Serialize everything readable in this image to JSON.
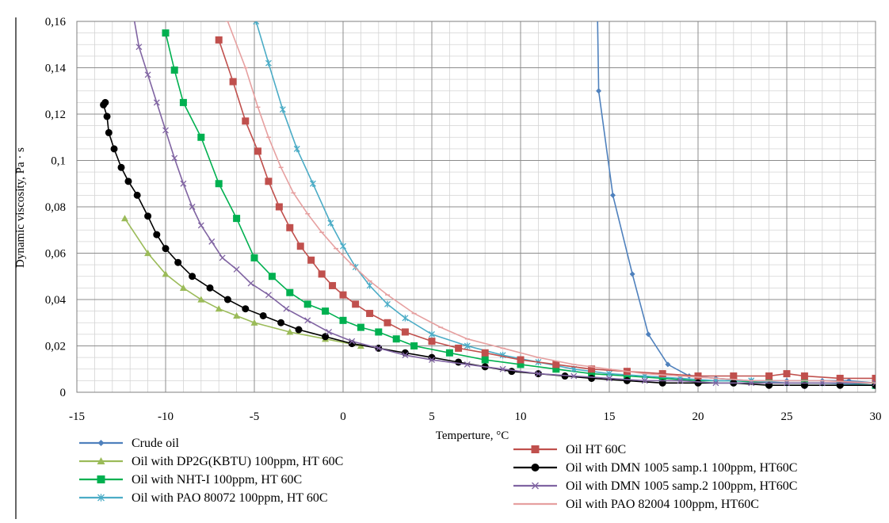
{
  "chart_data": {
    "type": "line",
    "title": "",
    "xlabel": "Temperture, °C",
    "ylabel": "Dynamic viscosity, Pa · s",
    "xlim": [
      -15,
      30
    ],
    "ylim": [
      0,
      0.16
    ],
    "xticks": [
      -15,
      -10,
      -5,
      0,
      5,
      10,
      15,
      20,
      25,
      30
    ],
    "xtick_labels": [
      "-15",
      "-10",
      "-5",
      "0",
      "5",
      "10",
      "15",
      "20",
      "25",
      "30"
    ],
    "yticks": [
      0,
      0.02,
      0.04,
      0.06,
      0.08,
      0.1,
      0.12,
      0.14,
      0.16
    ],
    "ytick_labels": [
      "0",
      "0,02",
      "0,04",
      "0,06",
      "0,08",
      "0,1",
      "0,12",
      "0,14",
      "0,16"
    ],
    "grid": true,
    "legend_position": "bottom",
    "series": [
      {
        "name": "Crude oil",
        "color": "#4f81bd",
        "marker": "diamond",
        "points": [
          [
            14.3,
            0.18
          ],
          [
            14.4,
            0.13
          ],
          [
            15.2,
            0.085
          ],
          [
            16.3,
            0.051
          ],
          [
            17.2,
            0.025
          ],
          [
            18.3,
            0.012
          ],
          [
            19.5,
            0.007
          ],
          [
            21,
            0.006
          ],
          [
            23,
            0.005
          ],
          [
            25,
            0.005
          ],
          [
            27,
            0.005
          ],
          [
            28.5,
            0.005
          ],
          [
            30,
            0.004
          ]
        ]
      },
      {
        "name": "Oil with DP2G(KBTU) 100ppm, HT 60C",
        "color": "#9bbb59",
        "marker": "triangle",
        "points": [
          [
            -12.3,
            0.075
          ],
          [
            -11,
            0.06
          ],
          [
            -10,
            0.051
          ],
          [
            -9,
            0.045
          ],
          [
            -8,
            0.04
          ],
          [
            -7,
            0.036
          ],
          [
            -6,
            0.033
          ],
          [
            -5,
            0.03
          ],
          [
            -3,
            0.026
          ],
          [
            -1,
            0.023
          ],
          [
            1,
            0.02
          ]
        ]
      },
      {
        "name": "Oil with NHT-I 100ppm, HT 60C",
        "color": "#00b050",
        "marker": "square",
        "points": [
          [
            -10,
            0.155
          ],
          [
            -9.5,
            0.139
          ],
          [
            -9,
            0.125
          ],
          [
            -8,
            0.11
          ],
          [
            -7,
            0.09
          ],
          [
            -6,
            0.075
          ],
          [
            -5,
            0.058
          ],
          [
            -4,
            0.05
          ],
          [
            -3,
            0.043
          ],
          [
            -2,
            0.038
          ],
          [
            -1,
            0.035
          ],
          [
            0,
            0.031
          ],
          [
            1,
            0.028
          ],
          [
            2,
            0.026
          ],
          [
            3,
            0.023
          ],
          [
            4,
            0.02
          ],
          [
            6,
            0.017
          ],
          [
            8,
            0.014
          ],
          [
            10,
            0.012
          ],
          [
            12,
            0.01
          ],
          [
            14,
            0.008
          ],
          [
            16,
            0.007
          ],
          [
            18,
            0.006
          ],
          [
            20,
            0.005
          ],
          [
            22,
            0.005
          ],
          [
            24,
            0.004
          ],
          [
            26,
            0.004
          ],
          [
            28,
            0.004
          ],
          [
            30,
            0.003
          ]
        ]
      },
      {
        "name": "Oil with PAO 80072 100ppm, HT 60C",
        "color": "#4bacc6",
        "marker": "star",
        "points": [
          [
            -4.9,
            0.16
          ],
          [
            -4.2,
            0.142
          ],
          [
            -3.4,
            0.122
          ],
          [
            -2.6,
            0.105
          ],
          [
            -1.7,
            0.09
          ],
          [
            -0.7,
            0.073
          ],
          [
            0,
            0.063
          ],
          [
            0.7,
            0.054
          ],
          [
            1.5,
            0.046
          ],
          [
            2.5,
            0.038
          ],
          [
            3.5,
            0.032
          ],
          [
            5,
            0.025
          ],
          [
            7,
            0.02
          ],
          [
            9,
            0.016
          ],
          [
            11,
            0.013
          ],
          [
            13,
            0.01
          ],
          [
            15,
            0.008
          ],
          [
            17,
            0.007
          ],
          [
            19,
            0.006
          ],
          [
            21,
            0.005
          ],
          [
            23,
            0.005
          ],
          [
            25,
            0.004
          ],
          [
            27,
            0.004
          ],
          [
            30,
            0.003
          ]
        ]
      },
      {
        "name": "Oil HT 60C",
        "color": "#c0504d",
        "marker": "square",
        "points": [
          [
            -7,
            0.152
          ],
          [
            -6.2,
            0.134
          ],
          [
            -5.5,
            0.117
          ],
          [
            -4.8,
            0.104
          ],
          [
            -4.2,
            0.091
          ],
          [
            -3.6,
            0.08
          ],
          [
            -3,
            0.071
          ],
          [
            -2.4,
            0.063
          ],
          [
            -1.8,
            0.057
          ],
          [
            -1.2,
            0.051
          ],
          [
            -0.6,
            0.046
          ],
          [
            0,
            0.042
          ],
          [
            0.7,
            0.038
          ],
          [
            1.5,
            0.034
          ],
          [
            2.5,
            0.03
          ],
          [
            3.5,
            0.026
          ],
          [
            5,
            0.022
          ],
          [
            6.5,
            0.019
          ],
          [
            8,
            0.017
          ],
          [
            10,
            0.014
          ],
          [
            12,
            0.012
          ],
          [
            14,
            0.01
          ],
          [
            16,
            0.009
          ],
          [
            18,
            0.008
          ],
          [
            20,
            0.007
          ],
          [
            22,
            0.007
          ],
          [
            24,
            0.007
          ],
          [
            25,
            0.008
          ],
          [
            26,
            0.007
          ],
          [
            28,
            0.006
          ],
          [
            30,
            0.006
          ]
        ]
      },
      {
        "name": "Oil with DMN 1005 samp.1 100ppm, HT60C",
        "color": "#000000",
        "marker": "circle",
        "points": [
          [
            -13.4,
            0.125
          ],
          [
            -13.5,
            0.124
          ],
          [
            -13.3,
            0.119
          ],
          [
            -13.2,
            0.112
          ],
          [
            -12.9,
            0.105
          ],
          [
            -12.5,
            0.097
          ],
          [
            -12.1,
            0.091
          ],
          [
            -11.6,
            0.085
          ],
          [
            -11,
            0.076
          ],
          [
            -10.5,
            0.068
          ],
          [
            -10,
            0.062
          ],
          [
            -9.3,
            0.056
          ],
          [
            -8.5,
            0.05
          ],
          [
            -7.5,
            0.045
          ],
          [
            -6.5,
            0.04
          ],
          [
            -5.5,
            0.036
          ],
          [
            -4.5,
            0.033
          ],
          [
            -3.5,
            0.03
          ],
          [
            -2.5,
            0.027
          ],
          [
            -1,
            0.024
          ],
          [
            0.5,
            0.021
          ],
          [
            2,
            0.019
          ],
          [
            3.5,
            0.017
          ],
          [
            5,
            0.015
          ],
          [
            6.5,
            0.013
          ],
          [
            8,
            0.011
          ],
          [
            9.5,
            0.009
          ],
          [
            11,
            0.008
          ],
          [
            12.5,
            0.007
          ],
          [
            14,
            0.006
          ],
          [
            16,
            0.005
          ],
          [
            18,
            0.004
          ],
          [
            20,
            0.004
          ],
          [
            22,
            0.004
          ],
          [
            24,
            0.003
          ],
          [
            26,
            0.003
          ],
          [
            28,
            0.003
          ],
          [
            30,
            0.003
          ]
        ]
      },
      {
        "name": "Oil with DMN 1005 samp.2 100ppm, HT60C",
        "color": "#8064a2",
        "marker": "x",
        "points": [
          [
            -11.8,
            0.162
          ],
          [
            -11.5,
            0.149
          ],
          [
            -11,
            0.137
          ],
          [
            -10.5,
            0.125
          ],
          [
            -10,
            0.113
          ],
          [
            -9.5,
            0.101
          ],
          [
            -9,
            0.09
          ],
          [
            -8.5,
            0.08
          ],
          [
            -8,
            0.072
          ],
          [
            -7.4,
            0.065
          ],
          [
            -6.8,
            0.058
          ],
          [
            -6,
            0.053
          ],
          [
            -5.2,
            0.047
          ],
          [
            -4.2,
            0.042
          ],
          [
            -3.2,
            0.036
          ],
          [
            -2,
            0.031
          ],
          [
            -0.8,
            0.026
          ],
          [
            0.5,
            0.022
          ],
          [
            2,
            0.019
          ],
          [
            3.5,
            0.016
          ],
          [
            5,
            0.014
          ],
          [
            7,
            0.012
          ],
          [
            9,
            0.01
          ],
          [
            11,
            0.008
          ],
          [
            13,
            0.007
          ],
          [
            15,
            0.006
          ],
          [
            17,
            0.005
          ],
          [
            19,
            0.005
          ],
          [
            21,
            0.004
          ],
          [
            23,
            0.004
          ],
          [
            25,
            0.004
          ],
          [
            27,
            0.004
          ],
          [
            30,
            0.004
          ]
        ]
      },
      {
        "name": "Oil with PAO 82004 100ppm, HT60C",
        "color": "#e6a0a0",
        "marker": "dash",
        "points": [
          [
            -6.5,
            0.16
          ],
          [
            -5.5,
            0.14
          ],
          [
            -4.8,
            0.123
          ],
          [
            -4.2,
            0.11
          ],
          [
            -3.5,
            0.097
          ],
          [
            -2.8,
            0.086
          ],
          [
            -2,
            0.077
          ],
          [
            -1.2,
            0.069
          ],
          [
            -0.4,
            0.062
          ],
          [
            0.5,
            0.055
          ],
          [
            1.5,
            0.048
          ],
          [
            2.5,
            0.042
          ],
          [
            4,
            0.034
          ],
          [
            5.5,
            0.028
          ],
          [
            7,
            0.023
          ],
          [
            9,
            0.019
          ],
          [
            11,
            0.015
          ],
          [
            13,
            0.012
          ],
          [
            15,
            0.01
          ],
          [
            17,
            0.008
          ],
          [
            19,
            0.007
          ],
          [
            21,
            0.006
          ],
          [
            23,
            0.005
          ],
          [
            25,
            0.005
          ],
          [
            27,
            0.005
          ],
          [
            30,
            0.004
          ]
        ]
      }
    ]
  }
}
